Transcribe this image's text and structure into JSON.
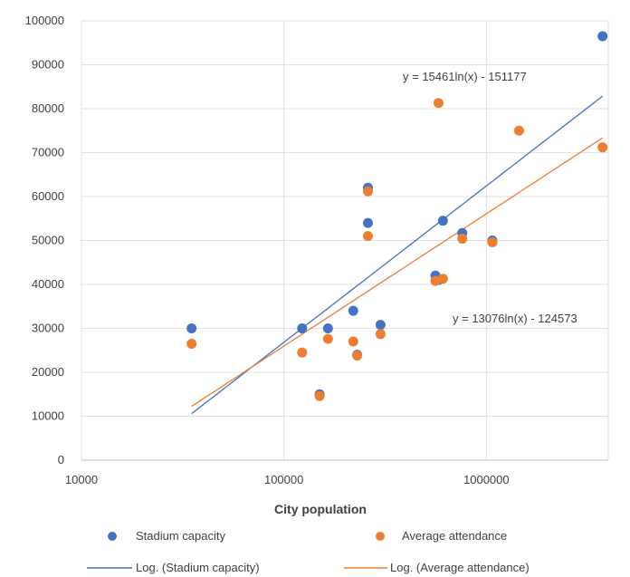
{
  "chart_data": {
    "type": "scatter",
    "title": "",
    "xlabel": "City population",
    "ylabel": "",
    "x_scale": "log",
    "xlim": [
      10000,
      4000000
    ],
    "ylim": [
      0,
      100000
    ],
    "x_tick_labels": [
      "10000",
      "100000",
      "1000000"
    ],
    "y_tick_labels": [
      "0",
      "10000",
      "20000",
      "30000",
      "40000",
      "50000",
      "60000",
      "70000",
      "80000",
      "90000",
      "100000"
    ],
    "grid": true,
    "legend_position": "bottom",
    "series": [
      {
        "name": "Stadium capacity",
        "color": "#4472C4",
        "points": [
          [
            35000,
            30000
          ],
          [
            123000,
            30000
          ],
          [
            150000,
            15000
          ],
          [
            165000,
            30000
          ],
          [
            220000,
            34000
          ],
          [
            230000,
            24000
          ],
          [
            260000,
            62000
          ],
          [
            260000,
            54000
          ],
          [
            300000,
            30800
          ],
          [
            560000,
            42000
          ],
          [
            580000,
            41000
          ],
          [
            610000,
            54500
          ],
          [
            760000,
            51700
          ],
          [
            1070000,
            50000
          ],
          [
            3750000,
            96500
          ]
        ]
      },
      {
        "name": "Average attendance",
        "color": "#ED7D31",
        "points": [
          [
            35000,
            26500
          ],
          [
            123000,
            24500
          ],
          [
            150000,
            14600
          ],
          [
            165000,
            27600
          ],
          [
            220000,
            27000
          ],
          [
            230000,
            23800
          ],
          [
            260000,
            61200
          ],
          [
            260000,
            51000
          ],
          [
            300000,
            28700
          ],
          [
            560000,
            40800
          ],
          [
            580000,
            81300
          ],
          [
            610000,
            41300
          ],
          [
            760000,
            50400
          ],
          [
            1070000,
            49600
          ],
          [
            1450000,
            75000
          ],
          [
            3750000,
            71200
          ]
        ]
      }
    ],
    "trendlines": [
      {
        "name": "Log. (Stadium capacity)",
        "color": "#4472C4",
        "a": 15461,
        "b": -151177,
        "x_range": [
          35000,
          3750000
        ],
        "equation_label": "y = 15461ln(x) - 151177"
      },
      {
        "name": "Log. (Average attendance)",
        "color": "#ED7D31",
        "a": 13076,
        "b": -124573,
        "x_range": [
          35000,
          3750000
        ],
        "equation_label": "y = 13076ln(x) - 124573"
      }
    ]
  }
}
